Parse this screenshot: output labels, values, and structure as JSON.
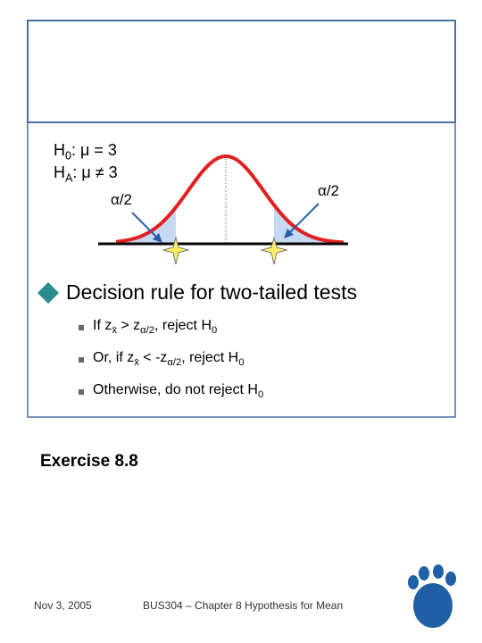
{
  "hypotheses": [
    [
      "H",
      "0",
      ": μ = 3"
    ],
    [
      "H",
      "A",
      ": μ ≠ 3"
    ]
  ],
  "alpha_left": "α/2",
  "alpha_right": "α/2",
  "heading": "Decision rule for two-tailed tests",
  "bullets": [
    [
      "If z",
      "x̄",
      " > z",
      "α/2",
      ", reject H",
      "0"
    ],
    [
      "Or, if z",
      "x̄",
      " < -z",
      "α/2",
      ", reject H",
      "0"
    ],
    [
      "Otherwise, do not reject H",
      "0"
    ]
  ],
  "exercise": "Exercise 8.8",
  "footer": {
    "date": "Nov 3, 2005",
    "course": "BUS304 – Chapter 8 Hypothesis for Mean"
  }
}
